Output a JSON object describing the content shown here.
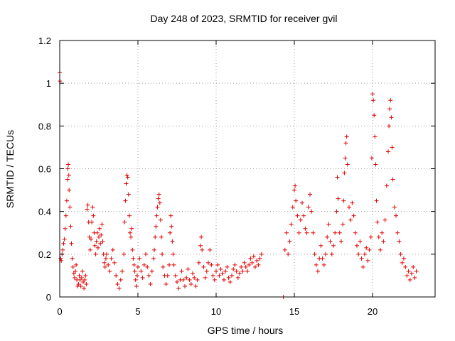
{
  "chart_data": {
    "type": "scatter",
    "title": "Day 248 of 2023, SRMTID for receiver gvil",
    "xlabel": "GPS time / hours",
    "ylabel": "SRMTID / TECUs",
    "xlim": [
      0,
      24
    ],
    "ylim": [
      0,
      1.2
    ],
    "xticks": [
      0,
      5,
      10,
      15,
      20
    ],
    "xtick_labels": [
      "0",
      "5",
      "10",
      "15",
      "20"
    ],
    "yticks": [
      0,
      0.2,
      0.4,
      0.6,
      0.8,
      1.0,
      1.2
    ],
    "ytick_labels": [
      "0",
      "0.2",
      "0.4",
      "0.6",
      "0.8",
      "1",
      "1.2"
    ],
    "grid": true,
    "marker": "plus",
    "color": "#e00000",
    "series": [
      {
        "name": "gvil",
        "points": [
          [
            0.0,
            1.05
          ],
          [
            0.02,
            1.01
          ],
          [
            0.05,
            0.18
          ],
          [
            0.1,
            0.17
          ],
          [
            0.15,
            0.2
          ],
          [
            0.2,
            0.22
          ],
          [
            0.25,
            0.25
          ],
          [
            0.3,
            0.27
          ],
          [
            0.35,
            0.32
          ],
          [
            0.4,
            0.38
          ],
          [
            0.45,
            0.45
          ],
          [
            0.5,
            0.55
          ],
          [
            0.52,
            0.6
          ],
          [
            0.55,
            0.62
          ],
          [
            0.58,
            0.57
          ],
          [
            0.6,
            0.5
          ],
          [
            0.65,
            0.42
          ],
          [
            0.7,
            0.33
          ],
          [
            0.75,
            0.25
          ],
          [
            0.8,
            0.18
          ],
          [
            0.85,
            0.14
          ],
          [
            0.9,
            0.11
          ],
          [
            0.95,
            0.09
          ],
          [
            1.0,
            0.12
          ],
          [
            1.05,
            0.15
          ],
          [
            1.1,
            0.08
          ],
          [
            1.15,
            0.05
          ],
          [
            1.2,
            0.06
          ],
          [
            1.25,
            0.1
          ],
          [
            1.3,
            0.08
          ],
          [
            1.35,
            0.05
          ],
          [
            1.4,
            0.09
          ],
          [
            1.45,
            0.12
          ],
          [
            1.5,
            0.07
          ],
          [
            1.55,
            0.04
          ],
          [
            1.6,
            0.08
          ],
          [
            1.65,
            0.1
          ],
          [
            1.7,
            0.06
          ],
          [
            1.75,
            0.41
          ],
          [
            1.8,
            0.43
          ],
          [
            1.85,
            0.35
          ],
          [
            1.9,
            0.28
          ],
          [
            1.95,
            0.22
          ],
          [
            2.0,
            0.27
          ],
          [
            2.05,
            0.35
          ],
          [
            2.1,
            0.42
          ],
          [
            2.15,
            0.38
          ],
          [
            2.2,
            0.3
          ],
          [
            2.25,
            0.24
          ],
          [
            2.3,
            0.2
          ],
          [
            2.35,
            0.26
          ],
          [
            2.4,
            0.3
          ],
          [
            2.45,
            0.23
          ],
          [
            2.5,
            0.28
          ],
          [
            2.55,
            0.32
          ],
          [
            2.6,
            0.25
          ],
          [
            2.65,
            0.29
          ],
          [
            2.7,
            0.34
          ],
          [
            2.75,
            0.26
          ],
          [
            2.8,
            0.2
          ],
          [
            2.85,
            0.16
          ],
          [
            2.9,
            0.14
          ],
          [
            2.95,
            0.18
          ],
          [
            3.0,
            0.2
          ],
          [
            3.1,
            0.15
          ],
          [
            3.2,
            0.12
          ],
          [
            3.3,
            0.18
          ],
          [
            3.4,
            0.22
          ],
          [
            3.5,
            0.16
          ],
          [
            3.6,
            0.1
          ],
          [
            3.7,
            0.06
          ],
          [
            3.8,
            0.04
          ],
          [
            3.9,
            0.08
          ],
          [
            4.0,
            0.12
          ],
          [
            4.1,
            0.2
          ],
          [
            4.15,
            0.35
          ],
          [
            4.2,
            0.45
          ],
          [
            4.25,
            0.53
          ],
          [
            4.3,
            0.57
          ],
          [
            4.35,
            0.56
          ],
          [
            4.4,
            0.48
          ],
          [
            4.45,
            0.38
          ],
          [
            4.5,
            0.3
          ],
          [
            4.55,
            0.28
          ],
          [
            4.6,
            0.32
          ],
          [
            4.65,
            0.22
          ],
          [
            4.7,
            0.18
          ],
          [
            4.75,
            0.15
          ],
          [
            4.8,
            0.12
          ],
          [
            4.85,
            0.08
          ],
          [
            4.9,
            0.05
          ],
          [
            4.95,
            0.1
          ],
          [
            5.0,
            0.14
          ],
          [
            5.1,
            0.18
          ],
          [
            5.2,
            0.12
          ],
          [
            5.3,
            0.09
          ],
          [
            5.4,
            0.15
          ],
          [
            5.5,
            0.2
          ],
          [
            5.6,
            0.14
          ],
          [
            5.7,
            0.1
          ],
          [
            5.8,
            0.06
          ],
          [
            5.9,
            0.12
          ],
          [
            6.0,
            0.18
          ],
          [
            6.05,
            0.22
          ],
          [
            6.1,
            0.28
          ],
          [
            6.15,
            0.33
          ],
          [
            6.2,
            0.38
          ],
          [
            6.25,
            0.42
          ],
          [
            6.3,
            0.46
          ],
          [
            6.35,
            0.48
          ],
          [
            6.4,
            0.44
          ],
          [
            6.45,
            0.36
          ],
          [
            6.5,
            0.28
          ],
          [
            6.55,
            0.2
          ],
          [
            6.6,
            0.14
          ],
          [
            6.7,
            0.1
          ],
          [
            6.8,
            0.06
          ],
          [
            6.9,
            0.1
          ],
          [
            7.0,
            0.15
          ],
          [
            7.05,
            0.3
          ],
          [
            7.1,
            0.38
          ],
          [
            7.15,
            0.33
          ],
          [
            7.2,
            0.26
          ],
          [
            7.25,
            0.2
          ],
          [
            7.3,
            0.15
          ],
          [
            7.4,
            0.1
          ],
          [
            7.5,
            0.07
          ],
          [
            7.6,
            0.04
          ],
          [
            7.7,
            0.08
          ],
          [
            7.8,
            0.12
          ],
          [
            7.9,
            0.08
          ],
          [
            8.0,
            0.05
          ],
          [
            8.1,
            0.09
          ],
          [
            8.2,
            0.13
          ],
          [
            8.3,
            0.08
          ],
          [
            8.4,
            0.06
          ],
          [
            8.5,
            0.11
          ],
          [
            8.6,
            0.09
          ],
          [
            8.7,
            0.05
          ],
          [
            8.8,
            0.08
          ],
          [
            8.9,
            0.16
          ],
          [
            9.0,
            0.24
          ],
          [
            9.05,
            0.28
          ],
          [
            9.1,
            0.22
          ],
          [
            9.2,
            0.14
          ],
          [
            9.3,
            0.09
          ],
          [
            9.4,
            0.12
          ],
          [
            9.5,
            0.16
          ],
          [
            9.6,
            0.22
          ],
          [
            9.7,
            0.15
          ],
          [
            9.8,
            0.1
          ],
          [
            9.9,
            0.08
          ],
          [
            10.0,
            0.12
          ],
          [
            10.1,
            0.15
          ],
          [
            10.2,
            0.1
          ],
          [
            10.3,
            0.13
          ],
          [
            10.4,
            0.11
          ],
          [
            10.5,
            0.08
          ],
          [
            10.6,
            0.12
          ],
          [
            10.7,
            0.14
          ],
          [
            10.8,
            0.09
          ],
          [
            10.9,
            0.07
          ],
          [
            11.0,
            0.1
          ],
          [
            11.1,
            0.13
          ],
          [
            11.2,
            0.15
          ],
          [
            11.3,
            0.12
          ],
          [
            11.4,
            0.09
          ],
          [
            11.5,
            0.11
          ],
          [
            11.6,
            0.14
          ],
          [
            11.7,
            0.12
          ],
          [
            11.8,
            0.16
          ],
          [
            11.9,
            0.14
          ],
          [
            12.0,
            0.12
          ],
          [
            12.1,
            0.15
          ],
          [
            12.2,
            0.18
          ],
          [
            12.3,
            0.16
          ],
          [
            12.4,
            0.19
          ],
          [
            12.5,
            0.14
          ],
          [
            12.6,
            0.17
          ],
          [
            12.7,
            0.15
          ],
          [
            12.8,
            0.18
          ],
          [
            12.9,
            0.2
          ],
          [
            14.3,
            0.0
          ],
          [
            14.4,
            0.22
          ],
          [
            14.5,
            0.3
          ],
          [
            14.6,
            0.2
          ],
          [
            14.7,
            0.26
          ],
          [
            14.8,
            0.34
          ],
          [
            14.9,
            0.42
          ],
          [
            15.0,
            0.5
          ],
          [
            15.05,
            0.52
          ],
          [
            15.1,
            0.45
          ],
          [
            15.2,
            0.38
          ],
          [
            15.3,
            0.3
          ],
          [
            15.4,
            0.36
          ],
          [
            15.5,
            0.44
          ],
          [
            15.6,
            0.38
          ],
          [
            15.7,
            0.32
          ],
          [
            15.8,
            0.3
          ],
          [
            15.9,
            0.42
          ],
          [
            16.0,
            0.48
          ],
          [
            16.1,
            0.4
          ],
          [
            16.2,
            0.3
          ],
          [
            16.3,
            0.2
          ],
          [
            16.4,
            0.15
          ],
          [
            16.5,
            0.12
          ],
          [
            16.6,
            0.18
          ],
          [
            16.7,
            0.24
          ],
          [
            16.8,
            0.18
          ],
          [
            16.9,
            0.15
          ],
          [
            17.0,
            0.2
          ],
          [
            17.1,
            0.28
          ],
          [
            17.2,
            0.34
          ],
          [
            17.3,
            0.26
          ],
          [
            17.4,
            0.2
          ],
          [
            17.5,
            0.24
          ],
          [
            17.6,
            0.3
          ],
          [
            17.7,
            0.4
          ],
          [
            17.75,
            0.56
          ],
          [
            17.8,
            0.46
          ],
          [
            17.9,
            0.3
          ],
          [
            18.0,
            0.26
          ],
          [
            18.1,
            0.34
          ],
          [
            18.15,
            0.45
          ],
          [
            18.2,
            0.58
          ],
          [
            18.25,
            0.65
          ],
          [
            18.3,
            0.72
          ],
          [
            18.35,
            0.75
          ],
          [
            18.4,
            0.62
          ],
          [
            18.5,
            0.42
          ],
          [
            18.6,
            0.36
          ],
          [
            18.7,
            0.44
          ],
          [
            18.8,
            0.38
          ],
          [
            18.9,
            0.3
          ],
          [
            19.0,
            0.24
          ],
          [
            19.1,
            0.2
          ],
          [
            19.2,
            0.26
          ],
          [
            19.3,
            0.18
          ],
          [
            19.4,
            0.14
          ],
          [
            19.5,
            0.2
          ],
          [
            19.6,
            0.23
          ],
          [
            19.7,
            0.17
          ],
          [
            19.8,
            0.22
          ],
          [
            19.9,
            0.28
          ],
          [
            19.95,
            0.65
          ],
          [
            20.0,
            0.95
          ],
          [
            20.05,
            0.92
          ],
          [
            20.1,
            0.85
          ],
          [
            20.15,
            0.75
          ],
          [
            20.2,
            0.62
          ],
          [
            20.25,
            0.45
          ],
          [
            20.3,
            0.35
          ],
          [
            20.4,
            0.28
          ],
          [
            20.5,
            0.22
          ],
          [
            20.6,
            0.3
          ],
          [
            20.7,
            0.26
          ],
          [
            20.8,
            0.36
          ],
          [
            20.9,
            0.52
          ],
          [
            21.0,
            0.68
          ],
          [
            21.05,
            0.8
          ],
          [
            21.1,
            0.88
          ],
          [
            21.15,
            0.92
          ],
          [
            21.2,
            0.84
          ],
          [
            21.25,
            0.7
          ],
          [
            21.3,
            0.55
          ],
          [
            21.4,
            0.42
          ],
          [
            21.5,
            0.38
          ],
          [
            21.6,
            0.3
          ],
          [
            21.7,
            0.26
          ],
          [
            21.8,
            0.2
          ],
          [
            21.9,
            0.16
          ],
          [
            22.0,
            0.18
          ],
          [
            22.1,
            0.14
          ],
          [
            22.2,
            0.1
          ],
          [
            22.3,
            0.12
          ],
          [
            22.4,
            0.08
          ],
          [
            22.5,
            0.11
          ],
          [
            22.6,
            0.14
          ],
          [
            22.7,
            0.09
          ],
          [
            22.8,
            0.12
          ]
        ]
      }
    ]
  }
}
